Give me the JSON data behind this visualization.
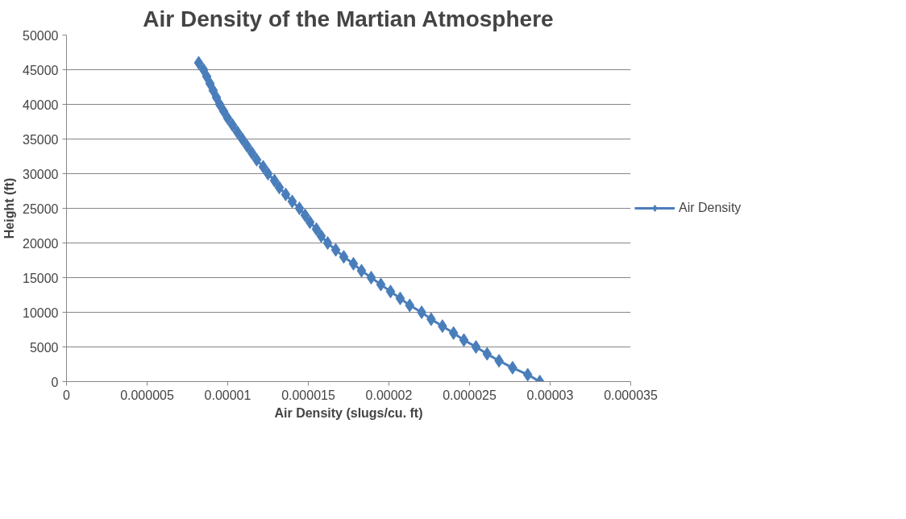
{
  "chart_data": {
    "type": "line",
    "title": "Air Density of the Martian Atmosphere",
    "xlabel": "Air Density (slugs/cu. ft)",
    "ylabel": "Height (ft)",
    "x": [
      2.936e-05,
      2.861e-05,
      2.767e-05,
      2.683e-05,
      2.609e-05,
      2.54e-05,
      2.465e-05,
      2.401e-05,
      2.332e-05,
      2.262e-05,
      2.203e-05,
      2.129e-05,
      2.07e-05,
      2.01e-05,
      1.95e-05,
      1.89e-05,
      1.83e-05,
      1.78e-05,
      1.72e-05,
      1.67e-05,
      1.62e-05,
      1.58e-05,
      1.55e-05,
      1.51e-05,
      1.48e-05,
      1.445e-05,
      1.4e-05,
      1.36e-05,
      1.32e-05,
      1.29e-05,
      1.25e-05,
      1.22e-05,
      1.18e-05,
      1.15e-05,
      1.12e-05,
      1.09e-05,
      1.06e-05,
      1.03e-05,
      1e-05,
      9.75e-06,
      9.5e-06,
      9.3e-06,
      9.1e-06,
      8.9e-06,
      8.7e-06,
      8.5e-06,
      8.2e-06
    ],
    "series": [
      {
        "name": "Air Density",
        "color": "#4a7ebb",
        "values": [
          0,
          1000,
          2000,
          3000,
          4000,
          5000,
          6000,
          7000,
          8000,
          9000,
          10000,
          11000,
          12000,
          13000,
          14000,
          15000,
          16000,
          17000,
          18000,
          19000,
          20000,
          21000,
          22000,
          23000,
          24000,
          25000,
          26000,
          27000,
          28000,
          29000,
          30000,
          31000,
          32000,
          33000,
          34000,
          35000,
          36000,
          37000,
          38000,
          39000,
          40000,
          41000,
          42000,
          43000,
          44000,
          45000,
          46000
        ]
      }
    ],
    "xlim": [
      0,
      3.5e-05
    ],
    "xticks": [
      0,
      {
        "value": 5e-06,
        "label": "0.000005"
      },
      {
        "value": 1e-05,
        "label": "0.00001"
      },
      {
        "value": 1.5e-05,
        "label": "0.000015"
      },
      {
        "value": 2e-05,
        "label": "0.00002"
      },
      {
        "value": 2.5e-05,
        "label": "0.000025"
      },
      {
        "value": 3e-05,
        "label": "0.00003"
      },
      {
        "value": 3.5e-05,
        "label": "0.000035"
      }
    ],
    "ylim": [
      0,
      50000
    ],
    "yticks": [
      0,
      5000,
      10000,
      15000,
      20000,
      25000,
      30000,
      35000,
      40000,
      45000,
      50000
    ],
    "grid": "y",
    "legend": "right",
    "marker": "diamond",
    "line_style": "solid"
  }
}
